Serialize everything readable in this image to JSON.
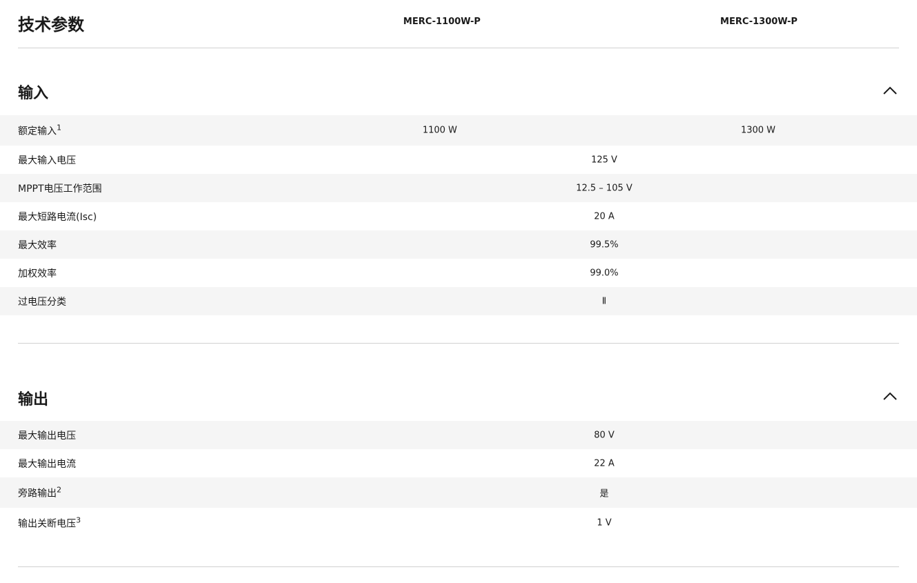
{
  "header": {
    "title": "技术参数",
    "models": [
      "MERC-1100W-P",
      "MERC-1300W-P"
    ]
  },
  "sections": [
    {
      "title": "输入",
      "chevron_icon": "chevron-up-icon",
      "rows": [
        {
          "label": "额定输入",
          "sup": "1",
          "values": [
            "1100 W",
            "1300 W"
          ]
        },
        {
          "label": "最大输入电压",
          "value": "125 V"
        },
        {
          "label": "MPPT电压工作范围",
          "value": "12.5 – 105 V"
        },
        {
          "label": "最大短路电流(Isc)",
          "value": "20 A"
        },
        {
          "label": "最大效率",
          "value": "99.5%"
        },
        {
          "label": "加权效率",
          "value": "99.0%"
        },
        {
          "label": "过电压分类",
          "value": "Ⅱ"
        }
      ]
    },
    {
      "title": "输出",
      "chevron_icon": "chevron-up-icon",
      "rows": [
        {
          "label": "最大输出电压",
          "value": "80 V"
        },
        {
          "label": "最大输出电流",
          "value": "22 A"
        },
        {
          "label": "旁路输出",
          "sup": "2",
          "value": "是"
        },
        {
          "label": "输出关断电压",
          "sup": "3",
          "value": "1 V"
        }
      ]
    }
  ]
}
